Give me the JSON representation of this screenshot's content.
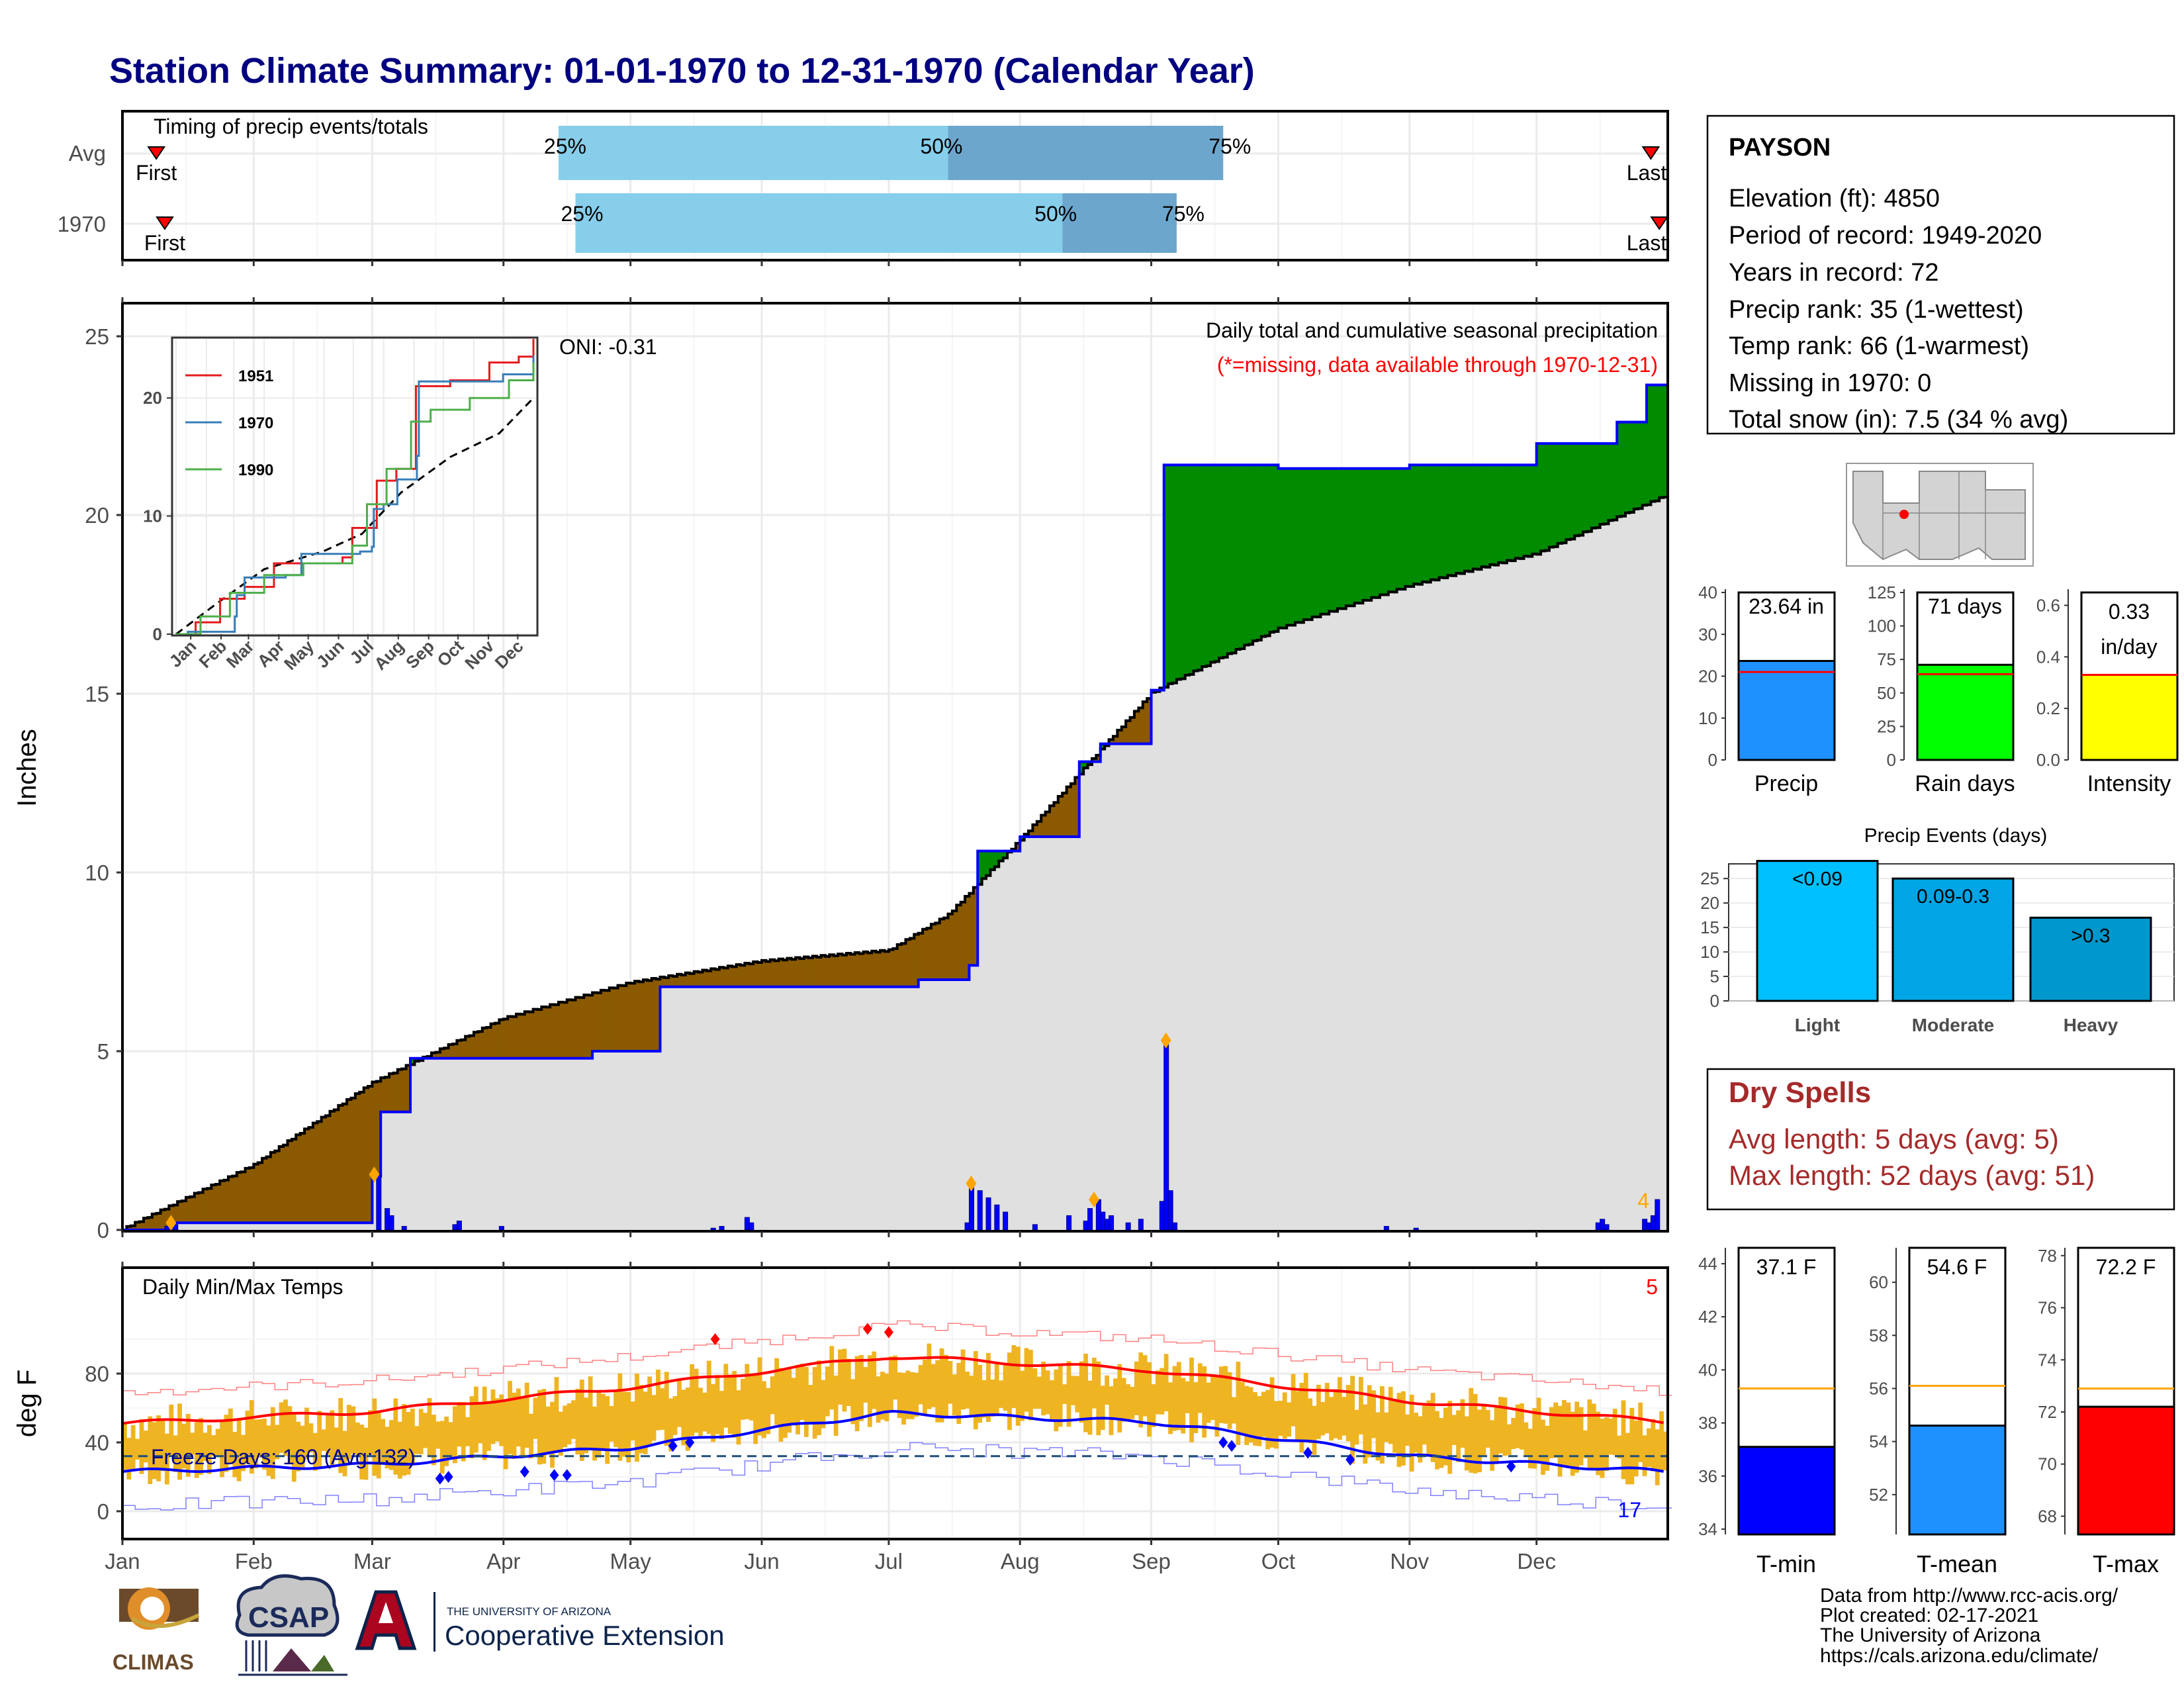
{
  "title": "Station Climate Summary: 01-01-1970 to 12-31-1970 (Calendar Year)",
  "colors": {
    "title": "#000080",
    "light_blue": "#87CEEB",
    "mid_blue": "#6CA6CD",
    "brown": "#8B5A00",
    "green": "#008B00",
    "blue_line": "#0000FF",
    "gray_fill": "#E0E0E0",
    "orange": "#FFA500",
    "gold_bars": "#EEB422",
    "red": "#FF0000",
    "dark_red": "#A52A2A",
    "navy": "#00008B"
  },
  "timing_panel": {
    "title": "Timing of precip events/totals",
    "rows": [
      {
        "label": "Avg",
        "q25_label": "25%",
        "q50_label": "50%",
        "q75_label": "75%",
        "q25": "1970-04-14",
        "q50": "1970-07-15",
        "q75": "1970-09-18",
        "first": "1970-01-09",
        "last": "1970-12-28",
        "first_label": "First",
        "last_label": "Last"
      },
      {
        "label": "1970",
        "q25_label": "25%",
        "q50_label": "50%",
        "q75_label": "75%",
        "q25": "1970-04-18",
        "q50": "1970-08-11",
        "q75": "1970-09-07",
        "first": "1970-01-11",
        "last": "1970-12-30",
        "first_label": "First",
        "last_label": "Last"
      }
    ]
  },
  "precip_panel": {
    "ylabel": "Inches",
    "yticks": [
      "0",
      "5",
      "10",
      "15",
      "20",
      "25"
    ],
    "header": "Daily total and cumulative seasonal precipitation",
    "subheader": "(*=missing, data available through 1970-12-31)",
    "oni": "ONI: -0.31",
    "corner_count": "4"
  },
  "inset": {
    "yticks": [
      "0",
      "10",
      "20"
    ],
    "months": [
      "Jan",
      "Feb",
      "Mar",
      "Apr",
      "May",
      "Jun",
      "Jul",
      "Aug",
      "Sep",
      "Oct",
      "Nov",
      "Dec"
    ],
    "legend": [
      {
        "name": "1951",
        "color": "#E41A1C"
      },
      {
        "name": "1970",
        "color": "#377EB8"
      },
      {
        "name": "1990",
        "color": "#4DAF4A"
      }
    ]
  },
  "temp_panel": {
    "ylabel": "deg F",
    "yticks": [
      "0",
      "40",
      "80"
    ],
    "title": "Daily Min/Max Temps",
    "freeze_text": "Freeze Days: 160 (Avg:132)",
    "corner_top": "5",
    "corner_bottom": "17"
  },
  "months": [
    "Jan",
    "Feb",
    "Mar",
    "Apr",
    "May",
    "Jun",
    "Jul",
    "Aug",
    "Sep",
    "Oct",
    "Nov",
    "Dec"
  ],
  "info_box": {
    "station": "PAYSON",
    "lines": [
      "Elevation (ft): 4850",
      "Period of record: 1949-2020",
      "Years in record: 72",
      "Precip rank: 35 (1-wettest)",
      "Temp rank: 66 (1-warmest)",
      "Missing in 1970: 0",
      "Total snow (in): 7.5 (34 % avg)"
    ]
  },
  "mini_bars": [
    {
      "label": "Precip",
      "value_text": "23.64 in",
      "color": "#1E90FF",
      "yticks": [
        "0",
        "10",
        "20",
        "30",
        "40"
      ]
    },
    {
      "label": "Rain days",
      "value_text": "71 days",
      "color": "#00FF00",
      "yticks": [
        "0",
        "25",
        "50",
        "75",
        "100",
        "125"
      ]
    },
    {
      "label": "Intensity",
      "value_text": "0.33",
      "value_text2": "in/day",
      "color": "#FFFF00",
      "yticks": [
        "0.0",
        "0.2",
        "0.4",
        "0.6"
      ]
    }
  ],
  "events": {
    "title": "Precip Events (days)",
    "yticks": [
      "0",
      "5",
      "10",
      "15",
      "20",
      "25"
    ],
    "bars": [
      {
        "category": "Light",
        "label": "<0.09",
        "color": "#00BFFF"
      },
      {
        "category": "Moderate",
        "label": "0.09-0.3",
        "color": "#00A5E5"
      },
      {
        "category": "Heavy",
        "label": ">0.3",
        "color": "#0097CC"
      }
    ]
  },
  "dry_spells": {
    "title": "Dry Spells",
    "line1": "Avg length: 5 days (avg: 5)",
    "line2": "Max length: 52 days (avg: 51)"
  },
  "temp_bars": [
    {
      "label": "T-min",
      "value_text": "37.1 F",
      "color": "#0000FF",
      "yticks": [
        "34",
        "36",
        "38",
        "40",
        "42",
        "44"
      ]
    },
    {
      "label": "T-mean",
      "value_text": "54.6 F",
      "color": "#1E90FF",
      "yticks": [
        "52",
        "54",
        "56",
        "58",
        "60"
      ]
    },
    {
      "label": "T-max",
      "value_text": "72.2 F",
      "color": "#FF0000",
      "yticks": [
        "68",
        "70",
        "72",
        "74",
        "76",
        "78"
      ]
    }
  ],
  "footer": {
    "lines": [
      "Data from http://www.rcc-acis.org/",
      "Plot created: 02-17-2021",
      "The University of Arizona",
      "https://cals.arizona.edu/climate/"
    ]
  },
  "logos": {
    "climas": "CLIMAS",
    "csap": "CSAP",
    "ua_small": "THE UNIVERSITY OF ARIZONA",
    "ua_big": "Cooperative Extension"
  },
  "chart_data": {
    "type": "line",
    "title": "Station Climate Summary: 01-01-1970 to 12-31-1970 (Calendar Year)",
    "precip": {
      "ylabel": "Inches",
      "ylim": [
        0,
        26
      ],
      "cumulative_1970": {
        "x": [
          "1970-01-01",
          "1970-01-12",
          "1970-03-01",
          "1970-03-03",
          "1970-03-10",
          "1970-04-22",
          "1970-05-08",
          "1970-07-08",
          "1970-07-20",
          "1970-07-22",
          "1970-08-01",
          "1970-08-15",
          "1970-08-20",
          "1970-09-01",
          "1970-09-04",
          "1970-09-15",
          "1970-10-01",
          "1970-11-01",
          "1970-12-01",
          "1970-12-20",
          "1970-12-27",
          "1970-12-31"
        ],
        "y": [
          0,
          0.2,
          1.5,
          3.3,
          4.8,
          5.0,
          6.8,
          7.0,
          7.4,
          10.6,
          11.0,
          13.1,
          13.6,
          15.1,
          21.4,
          21.4,
          21.3,
          21.4,
          22.0,
          22.6,
          23.64,
          23.64
        ]
      },
      "cumulative_avg": {
        "x": [
          "1970-01-01",
          "1970-02-01",
          "1970-03-01",
          "1970-04-01",
          "1970-05-01",
          "1970-06-01",
          "1970-07-01",
          "1970-07-15",
          "1970-08-01",
          "1970-09-01",
          "1970-10-01",
          "1970-11-01",
          "1970-12-01",
          "1970-12-31"
        ],
        "y": [
          0,
          1.8,
          4.1,
          5.9,
          6.9,
          7.5,
          7.8,
          8.8,
          10.9,
          15.0,
          16.8,
          18.0,
          18.9,
          20.5
        ]
      },
      "daily_peaks": {
        "x": [
          "1970-01-12",
          "1970-03-01",
          "1970-07-20",
          "1970-08-18",
          "1970-09-04"
        ],
        "y": [
          0.2,
          1.55,
          1.3,
          0.85,
          5.3
        ]
      }
    },
    "temperature": {
      "ylabel": "deg F",
      "ylim": [
        -10,
        110
      ],
      "avg_max": {
        "x": [
          "1970-01-01",
          "1970-03-01",
          "1970-05-01",
          "1970-07-01",
          "1970-09-01",
          "1970-11-01",
          "1970-12-31"
        ],
        "y": [
          51,
          58,
          72,
          90,
          82,
          64,
          52
        ]
      },
      "avg_min": {
        "x": [
          "1970-01-01",
          "1970-03-01",
          "1970-05-01",
          "1970-07-01",
          "1970-09-01",
          "1970-11-01",
          "1970-12-31"
        ],
        "y": [
          23,
          27,
          37,
          57,
          52,
          32,
          23
        ]
      },
      "freeze_line": 32
    }
  }
}
